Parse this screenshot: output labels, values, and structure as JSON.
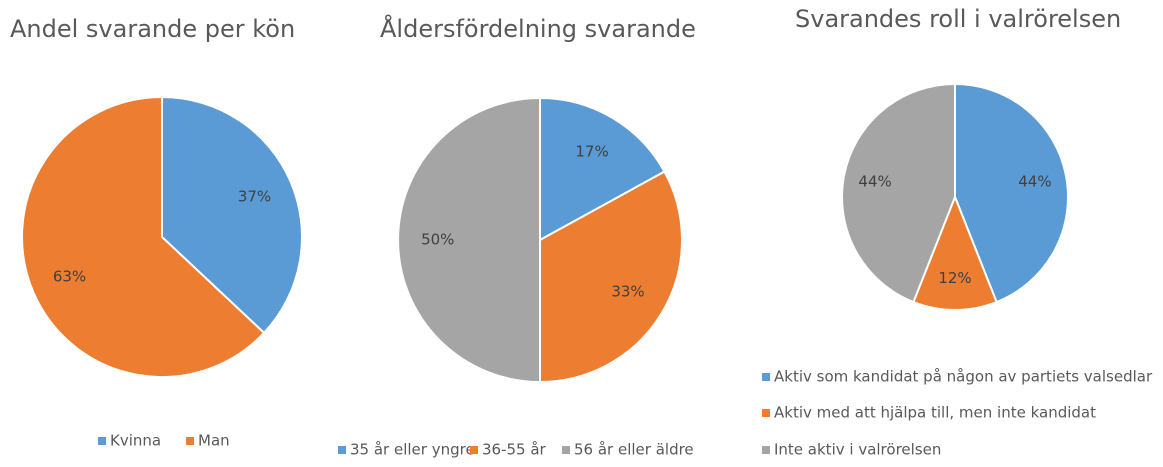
{
  "chart_data": [
    {
      "type": "pie",
      "title": "Andel svarande per kön",
      "categories": [
        "Kvinna",
        "Man"
      ],
      "values": [
        37,
        63
      ],
      "value_labels": [
        "37%",
        "63%"
      ],
      "colors": [
        "#5b9bd5",
        "#ed7d31"
      ],
      "legend": "bottom"
    },
    {
      "type": "pie",
      "title": "Åldersfördelning svarande",
      "categories": [
        "35 år eller yngre",
        "36-55 år",
        "56 år eller äldre"
      ],
      "values": [
        17,
        33,
        50
      ],
      "value_labels": [
        "17%",
        "33%",
        "50%"
      ],
      "colors": [
        "#5b9bd5",
        "#ed7d31",
        "#a5a5a5"
      ],
      "legend": "bottom"
    },
    {
      "type": "pie",
      "title": "Svarandes roll i valrörelsen",
      "categories": [
        "Aktiv som kandidat på någon av partiets valsedlar",
        "Aktiv med att hjälpa till, men inte kandidat",
        "Inte aktiv i valrörelsen"
      ],
      "values": [
        44,
        12,
        44
      ],
      "value_labels": [
        "44%",
        "12%",
        "44%"
      ],
      "colors": [
        "#5b9bd5",
        "#ed7d31",
        "#a5a5a5"
      ],
      "legend": "bottom"
    }
  ]
}
